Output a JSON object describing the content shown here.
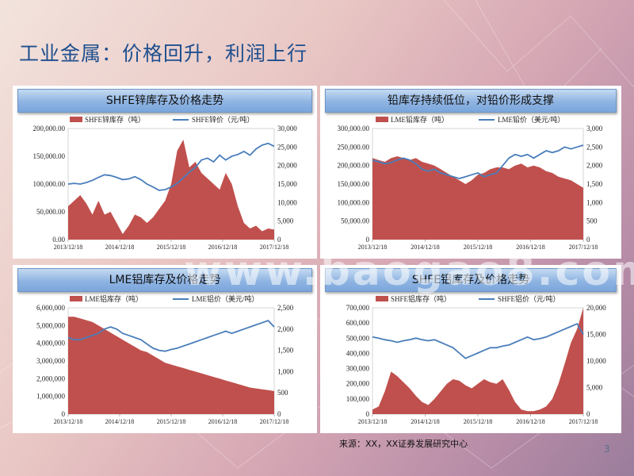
{
  "slide": {
    "title": "工业金属：价格回升，利润上行",
    "source": "来源：XX，XX证券发展研究中心",
    "page_number": "3",
    "watermark": "www.baogao8.com"
  },
  "colors": {
    "area": "#c0504d",
    "line": "#4a7ebb",
    "title": "#1e4f8f"
  },
  "chart_data": [
    {
      "id": "c1",
      "type": "area+line",
      "title": "SHFE锌库存及价格走势",
      "legend": [
        "SHFE锌库存（吨）",
        "SHFE锌价（元/吨）"
      ],
      "x_ticks": [
        "2013/12/18",
        "2014/12/18",
        "2015/12/18",
        "2016/12/18",
        "2017/12/18"
      ],
      "left_axis": {
        "ticks": [
          "0.00",
          "50,000.00",
          "100,000.00",
          "150,000.00",
          "200,000.00"
        ],
        "range": [
          0,
          200000
        ]
      },
      "right_axis": {
        "ticks": [
          "0",
          "5,000",
          "10,000",
          "15,000",
          "20,000",
          "25,000",
          "30,000"
        ],
        "range": [
          0,
          30000
        ]
      },
      "series": [
        {
          "name": "SHFE锌库存（吨）",
          "kind": "area",
          "values": [
            60000,
            70000,
            80000,
            65000,
            45000,
            70000,
            45000,
            50000,
            30000,
            10000,
            25000,
            45000,
            40000,
            30000,
            40000,
            55000,
            70000,
            100000,
            160000,
            180000,
            130000,
            140000,
            120000,
            110000,
            100000,
            90000,
            120000,
            100000,
            60000,
            30000,
            20000,
            25000,
            15000,
            20000,
            18000
          ]
        },
        {
          "name": "SHFE锌价（元/吨）",
          "kind": "line",
          "values": [
            15000,
            15200,
            15000,
            15400,
            16000,
            16800,
            17500,
            17300,
            16800,
            16200,
            16400,
            17000,
            16200,
            15000,
            14200,
            13300,
            13500,
            14200,
            15200,
            16700,
            18200,
            19500,
            21500,
            22000,
            21000,
            22800,
            21500,
            22500,
            23000,
            23800,
            22800,
            24500,
            25500,
            26000,
            25200
          ]
        }
      ]
    },
    {
      "id": "c2",
      "type": "area+line",
      "title": "铅库存持续低位，对铅价形成支撑",
      "legend": [
        "LME铅库存（吨）",
        "LME铅价（美元/吨）"
      ],
      "x_ticks": [
        "2013/12/18",
        "2014/12/18",
        "2015/12/18",
        "2016/12/18",
        "2017/12/18"
      ],
      "left_axis": {
        "ticks": [
          "0",
          "50,000.00",
          "100,000.00",
          "150,000.00",
          "200,000.00",
          "250,000.00",
          "300,000.00"
        ],
        "range": [
          0,
          300000
        ]
      },
      "right_axis": {
        "ticks": [
          "0",
          "500",
          "1,000",
          "1,500",
          "2,000",
          "2,500",
          "3,000"
        ],
        "range": [
          0,
          3000
        ]
      },
      "series": [
        {
          "name": "LME铅库存（吨）",
          "kind": "area",
          "values": [
            220000,
            215000,
            210000,
            220000,
            225000,
            220000,
            215000,
            220000,
            210000,
            205000,
            200000,
            190000,
            180000,
            170000,
            160000,
            150000,
            160000,
            175000,
            180000,
            190000,
            195000,
            195000,
            190000,
            200000,
            205000,
            195000,
            200000,
            195000,
            185000,
            180000,
            170000,
            165000,
            160000,
            150000,
            140000
          ]
        },
        {
          "name": "LME铅价（美元/吨）",
          "kind": "line",
          "values": [
            2150,
            2100,
            2050,
            2080,
            2150,
            2200,
            2150,
            2050,
            1900,
            1850,
            1900,
            1800,
            1750,
            1700,
            1650,
            1700,
            1750,
            1800,
            1700,
            1750,
            1800,
            2000,
            2200,
            2300,
            2250,
            2300,
            2200,
            2300,
            2400,
            2350,
            2400,
            2500,
            2450,
            2500,
            2550
          ]
        }
      ]
    },
    {
      "id": "c3",
      "type": "area+line",
      "title": "LME铝库存及价格走势",
      "legend": [
        "LME铝库存（吨）",
        "LME铝价（美元/吨）"
      ],
      "x_ticks": [
        "2013/12/18",
        "2014/12/18",
        "2015/12/18",
        "2016/12/18",
        "2017/12/18"
      ],
      "left_axis": {
        "ticks": [
          "0",
          "1,000,000",
          "2,000,000",
          "3,000,000",
          "4,000,000",
          "5,000,000",
          "6,000,000"
        ],
        "range": [
          0,
          6000000
        ]
      },
      "right_axis": {
        "ticks": [
          "0",
          "500",
          "1,000",
          "1,500",
          "2,000",
          "2,500"
        ],
        "range": [
          0,
          2500
        ]
      },
      "series": [
        {
          "name": "LME铝库存（吨）",
          "kind": "area",
          "values": [
            5500000,
            5500000,
            5400000,
            5300000,
            5200000,
            5000000,
            4800000,
            4600000,
            4400000,
            4200000,
            4000000,
            3800000,
            3600000,
            3500000,
            3300000,
            3100000,
            2900000,
            2800000,
            2700000,
            2600000,
            2500000,
            2400000,
            2300000,
            2200000,
            2100000,
            2000000,
            1900000,
            1800000,
            1700000,
            1600000,
            1500000,
            1450000,
            1400000,
            1350000,
            1300000
          ]
        },
        {
          "name": "LME铝价（美元/吨）",
          "kind": "line",
          "values": [
            1800,
            1750,
            1750,
            1800,
            1850,
            1900,
            2000,
            2050,
            2000,
            1900,
            1850,
            1800,
            1750,
            1650,
            1550,
            1500,
            1480,
            1520,
            1550,
            1600,
            1650,
            1700,
            1750,
            1800,
            1850,
            1900,
            1950,
            1900,
            1950,
            2000,
            2050,
            2100,
            2150,
            2200,
            2050
          ]
        }
      ]
    },
    {
      "id": "c4",
      "type": "area+line",
      "title": "SHFE铝库存及价格走势",
      "legend": [
        "SHFE铝库存（吨）",
        "SHFE铝价（元/吨）"
      ],
      "x_ticks": [
        "2013/12/18",
        "2014/12/18",
        "2015/12/18",
        "2016/12/18",
        "2017/12/18"
      ],
      "left_axis": {
        "ticks": [
          "0",
          "100,000",
          "200,000",
          "300,000",
          "400,000",
          "500,000",
          "600,000",
          "700,000"
        ],
        "range": [
          0,
          700000
        ]
      },
      "right_axis": {
        "ticks": [
          "0",
          "5,000",
          "10,000",
          "15,000",
          "20,000"
        ],
        "range": [
          0,
          20000
        ]
      },
      "series": [
        {
          "name": "SHFE铝库存（吨）",
          "kind": "area",
          "values": [
            30000,
            50000,
            150000,
            280000,
            250000,
            210000,
            170000,
            120000,
            80000,
            60000,
            100000,
            150000,
            200000,
            230000,
            220000,
            190000,
            170000,
            200000,
            230000,
            210000,
            200000,
            230000,
            160000,
            80000,
            30000,
            20000,
            20000,
            30000,
            50000,
            100000,
            200000,
            330000,
            470000,
            560000,
            700000
          ]
        },
        {
          "name": "SHFE铝价（元/吨）",
          "kind": "line",
          "values": [
            14500,
            14300,
            14000,
            13800,
            13500,
            13800,
            14000,
            14300,
            14000,
            13800,
            14000,
            13500,
            13000,
            12500,
            11500,
            10500,
            11000,
            11500,
            12000,
            12500,
            12500,
            12800,
            13000,
            13500,
            14000,
            14500,
            14000,
            14200,
            14500,
            15000,
            15500,
            16000,
            16500,
            17000,
            15000
          ]
        }
      ]
    }
  ]
}
